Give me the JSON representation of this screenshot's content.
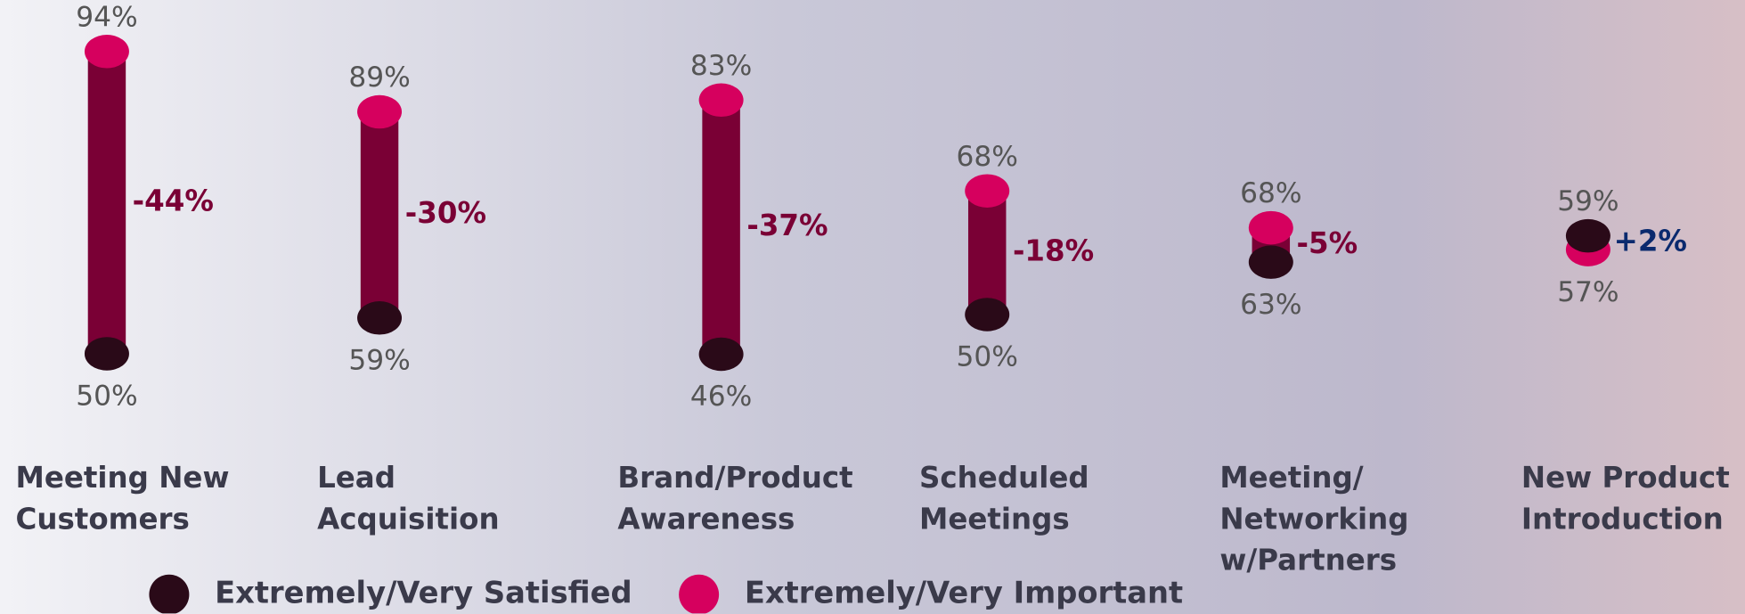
{
  "chart_data": {
    "type": "dumbbell",
    "categories": [
      "Meeting New\nCustomers",
      "Lead\nAcquisition",
      "Brand/Product\nAwareness",
      "Scheduled\nMeetings",
      "Meeting/\nNetworking\nw/Partners",
      "New Product\nIntroduction"
    ],
    "series": [
      {
        "name": "Extremely/Very Satisfied",
        "color": "#2a0a18",
        "values": [
          50,
          59,
          46,
          50,
          63,
          59
        ],
        "value_labels": [
          "50%",
          "59%",
          "46%",
          "50%",
          "63%",
          "59%"
        ]
      },
      {
        "name": "Extremely/Very Important",
        "color": "#d6005e",
        "values": [
          94,
          89,
          83,
          68,
          68,
          57
        ],
        "value_labels": [
          "94%",
          "89%",
          "83%",
          "68%",
          "68%",
          "57%"
        ]
      }
    ],
    "differences": {
      "values": [
        -44,
        -30,
        -37,
        -18,
        -5,
        2
      ],
      "value_labels": [
        "-44%",
        "-30%",
        "-37%",
        "-18%",
        "-5%",
        "+2%"
      ],
      "colors": [
        "#7a0035",
        "#7a0035",
        "#7a0035",
        "#7a0035",
        "#7a0035",
        "#0a2a6e"
      ]
    },
    "bar_color": "#7a0035"
  }
}
